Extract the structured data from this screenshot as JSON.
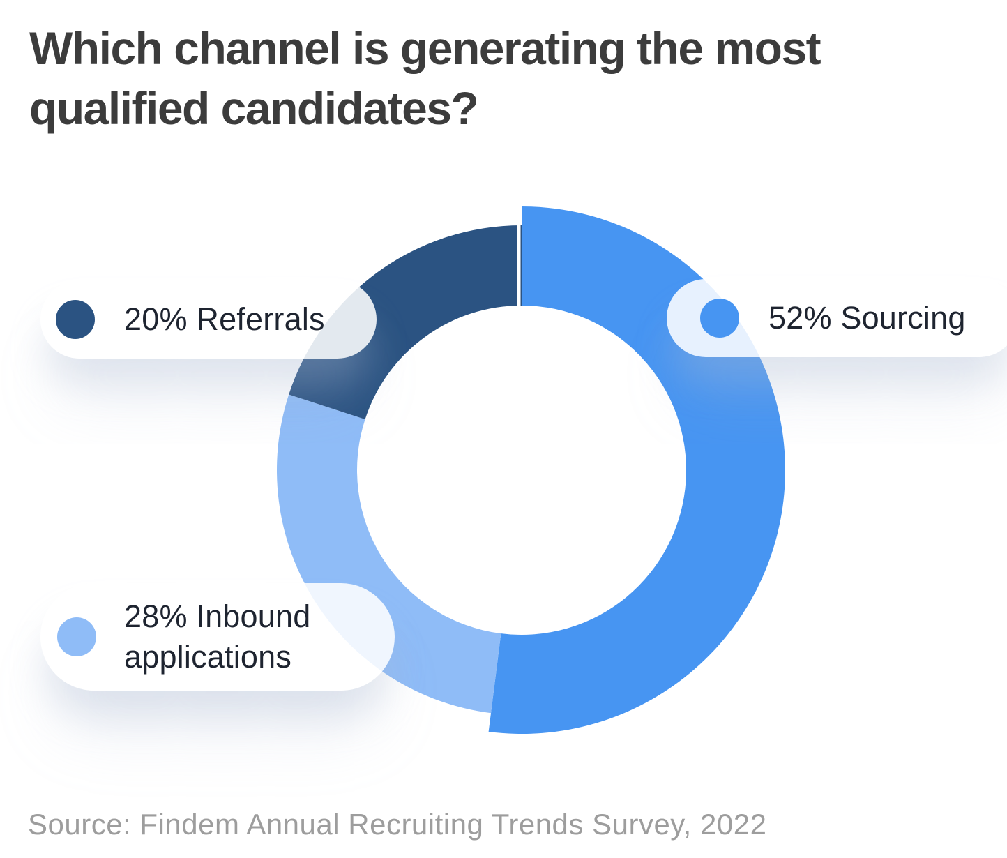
{
  "title": "Which channel is generating the most qualified candidates?",
  "source_note": "Source: Findem Annual Recruiting Trends Survey, 2022",
  "colors": {
    "sourcing": "#4795f2",
    "inbound": "#8fbcf7",
    "referrals": "#2b5382",
    "title_text": "#3c3c3c",
    "label_text": "#1e2430",
    "source_text": "#9d9d9d",
    "pill_background": "rgba(255,255,255,0.87)",
    "hole": "#ffffff"
  },
  "legend": {
    "sourcing": {
      "label": "52% Sourcing",
      "color_key": "sourcing"
    },
    "inbound": {
      "label": "28% Inbound applications",
      "color_key": "inbound"
    },
    "referrals": {
      "label": "20% Referrals",
      "color_key": "referrals"
    }
  },
  "chart_data": {
    "type": "pie",
    "subtype": "donut",
    "title": "Which channel is generating the most qualified candidates?",
    "labels": [
      "Sourcing",
      "Inbound applications",
      "Referrals"
    ],
    "values": [
      52,
      28,
      20
    ],
    "unit": "%",
    "colors": [
      "#4795f2",
      "#8fbcf7",
      "#2b5382"
    ],
    "start_angle_deg": 0,
    "direction": "clockwise",
    "legend_position": "floating pills overlaid left and right of donut",
    "emphasized_slice": "Sourcing",
    "source": "Source: Findem Annual Recruiting Trends Survey, 2022"
  }
}
